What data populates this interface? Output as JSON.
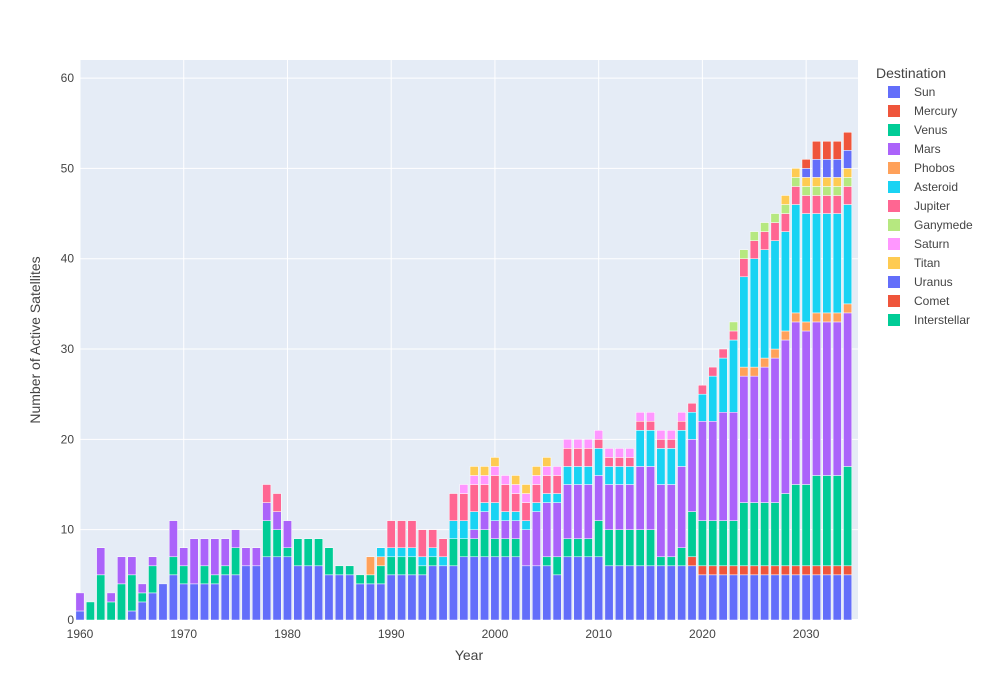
{
  "chart_data": {
    "type": "bar",
    "barmode": "stack",
    "xlabel": "Year",
    "ylabel": "Number of Active Satellites",
    "legend_title": "Destination",
    "legend_position": "right",
    "grid": true,
    "xlim": [
      1960,
      2035
    ],
    "ylim": [
      0,
      62
    ],
    "x_ticks": [
      1960,
      1970,
      1980,
      1990,
      2000,
      2010,
      2020,
      2030
    ],
    "y_ticks": [
      0,
      10,
      20,
      30,
      40,
      50,
      60
    ],
    "x": [
      1960,
      1961,
      1962,
      1963,
      1964,
      1965,
      1966,
      1967,
      1968,
      1969,
      1970,
      1971,
      1972,
      1973,
      1974,
      1975,
      1976,
      1977,
      1978,
      1979,
      1980,
      1981,
      1982,
      1983,
      1984,
      1985,
      1986,
      1987,
      1988,
      1989,
      1990,
      1991,
      1992,
      1993,
      1994,
      1995,
      1996,
      1997,
      1998,
      1999,
      2000,
      2001,
      2002,
      2003,
      2004,
      2005,
      2006,
      2007,
      2008,
      2009,
      2010,
      2011,
      2012,
      2013,
      2014,
      2015,
      2016,
      2017,
      2018,
      2019,
      2020,
      2021,
      2022,
      2023,
      2024,
      2025,
      2026,
      2027,
      2028,
      2029,
      2030,
      2031,
      2032,
      2033,
      2034
    ],
    "series": [
      {
        "name": "Sun",
        "color": "#636EFA",
        "values": [
          1,
          0,
          0,
          0,
          0,
          1,
          2,
          3,
          4,
          5,
          4,
          4,
          4,
          4,
          5,
          5,
          6,
          6,
          7,
          7,
          7,
          6,
          6,
          6,
          5,
          5,
          5,
          4,
          4,
          4,
          5,
          5,
          5,
          5,
          6,
          6,
          6,
          7,
          7,
          7,
          7,
          7,
          7,
          6,
          6,
          6,
          5,
          7,
          7,
          7,
          7,
          6,
          6,
          6,
          6,
          6,
          6,
          6,
          6,
          6,
          5,
          5,
          5,
          5,
          5,
          5,
          5,
          5,
          5,
          5,
          5,
          5,
          5,
          5,
          5
        ]
      },
      {
        "name": "Mercury",
        "color": "#EF553B",
        "values": [
          0,
          0,
          0,
          0,
          0,
          0,
          0,
          0,
          0,
          0,
          0,
          0,
          0,
          0,
          0,
          0,
          0,
          0,
          0,
          0,
          0,
          0,
          0,
          0,
          0,
          0,
          0,
          0,
          0,
          0,
          0,
          0,
          0,
          0,
          0,
          0,
          0,
          0,
          0,
          0,
          0,
          0,
          0,
          0,
          0,
          0,
          0,
          0,
          0,
          0,
          0,
          0,
          0,
          0,
          0,
          0,
          0,
          0,
          0,
          1,
          1,
          1,
          1,
          1,
          1,
          1,
          1,
          1,
          1,
          1,
          1,
          1,
          1,
          1,
          1
        ]
      },
      {
        "name": "Venus",
        "color": "#00CC96",
        "values": [
          0,
          2,
          5,
          2,
          4,
          4,
          1,
          3,
          0,
          2,
          2,
          0,
          2,
          1,
          1,
          3,
          0,
          0,
          4,
          3,
          1,
          3,
          3,
          3,
          3,
          1,
          1,
          1,
          1,
          2,
          2,
          2,
          2,
          1,
          1,
          0,
          3,
          2,
          2,
          3,
          2,
          2,
          2,
          0,
          0,
          1,
          2,
          2,
          2,
          2,
          4,
          4,
          4,
          4,
          4,
          4,
          1,
          1,
          2,
          5,
          5,
          5,
          5,
          5,
          7,
          7,
          7,
          7,
          8,
          9,
          9,
          10,
          10,
          10,
          11
        ]
      },
      {
        "name": "Mars",
        "color": "#AB63FA",
        "values": [
          2,
          0,
          3,
          1,
          3,
          2,
          1,
          1,
          0,
          4,
          2,
          5,
          3,
          4,
          3,
          2,
          2,
          2,
          2,
          2,
          3,
          0,
          0,
          0,
          0,
          0,
          0,
          0,
          0,
          0,
          0,
          0,
          0,
          0,
          0,
          0,
          0,
          0,
          1,
          2,
          2,
          2,
          2,
          4,
          6,
          6,
          6,
          6,
          6,
          6,
          5,
          5,
          5,
          5,
          7,
          7,
          8,
          8,
          9,
          8,
          11,
          11,
          12,
          12,
          14,
          14,
          15,
          16,
          17,
          18,
          17,
          17,
          17,
          17,
          17
        ]
      },
      {
        "name": "Phobos",
        "color": "#FFA15A",
        "values": [
          0,
          0,
          0,
          0,
          0,
          0,
          0,
          0,
          0,
          0,
          0,
          0,
          0,
          0,
          0,
          0,
          0,
          0,
          0,
          0,
          0,
          0,
          0,
          0,
          0,
          0,
          0,
          0,
          2,
          1,
          0,
          0,
          0,
          0,
          0,
          0,
          0,
          0,
          0,
          0,
          0,
          0,
          0,
          0,
          0,
          0,
          0,
          0,
          0,
          0,
          0,
          0,
          0,
          0,
          0,
          0,
          0,
          0,
          0,
          0,
          0,
          0,
          0,
          0,
          1,
          1,
          1,
          1,
          1,
          1,
          1,
          1,
          1,
          1,
          1
        ]
      },
      {
        "name": "Asteroid",
        "color": "#19D3F3",
        "values": [
          0,
          0,
          0,
          0,
          0,
          0,
          0,
          0,
          0,
          0,
          0,
          0,
          0,
          0,
          0,
          0,
          0,
          0,
          0,
          0,
          0,
          0,
          0,
          0,
          0,
          0,
          0,
          0,
          0,
          1,
          1,
          1,
          1,
          1,
          1,
          1,
          2,
          2,
          2,
          1,
          2,
          1,
          1,
          1,
          1,
          1,
          1,
          2,
          2,
          2,
          3,
          2,
          2,
          2,
          4,
          4,
          4,
          4,
          4,
          3,
          3,
          5,
          6,
          8,
          10,
          12,
          12,
          12,
          11,
          12,
          12,
          11,
          11,
          11,
          11
        ]
      },
      {
        "name": "Jupiter",
        "color": "#FF6692",
        "values": [
          0,
          0,
          0,
          0,
          0,
          0,
          0,
          0,
          0,
          0,
          0,
          0,
          0,
          0,
          0,
          0,
          0,
          0,
          2,
          2,
          0,
          0,
          0,
          0,
          0,
          0,
          0,
          0,
          0,
          0,
          3,
          3,
          3,
          3,
          2,
          2,
          3,
          3,
          3,
          2,
          3,
          3,
          2,
          2,
          2,
          2,
          2,
          2,
          2,
          2,
          1,
          1,
          1,
          1,
          1,
          1,
          1,
          1,
          1,
          1,
          1,
          1,
          1,
          1,
          2,
          2,
          2,
          2,
          2,
          2,
          2,
          2,
          2,
          2,
          2
        ]
      },
      {
        "name": "Ganymede",
        "color": "#B6E880",
        "values": [
          0,
          0,
          0,
          0,
          0,
          0,
          0,
          0,
          0,
          0,
          0,
          0,
          0,
          0,
          0,
          0,
          0,
          0,
          0,
          0,
          0,
          0,
          0,
          0,
          0,
          0,
          0,
          0,
          0,
          0,
          0,
          0,
          0,
          0,
          0,
          0,
          0,
          0,
          0,
          0,
          0,
          0,
          0,
          0,
          0,
          0,
          0,
          0,
          0,
          0,
          0,
          0,
          0,
          0,
          0,
          0,
          0,
          0,
          0,
          0,
          0,
          0,
          0,
          1,
          1,
          1,
          1,
          1,
          1,
          1,
          1,
          1,
          1,
          1,
          1
        ]
      },
      {
        "name": "Saturn",
        "color": "#FF97FF",
        "values": [
          0,
          0,
          0,
          0,
          0,
          0,
          0,
          0,
          0,
          0,
          0,
          0,
          0,
          0,
          0,
          0,
          0,
          0,
          0,
          0,
          0,
          0,
          0,
          0,
          0,
          0,
          0,
          0,
          0,
          0,
          0,
          0,
          0,
          0,
          0,
          0,
          0,
          1,
          1,
          1,
          1,
          1,
          1,
          1,
          1,
          1,
          1,
          1,
          1,
          1,
          1,
          1,
          1,
          1,
          1,
          1,
          1,
          1,
          1,
          0,
          0,
          0,
          0,
          0,
          0,
          0,
          0,
          0,
          0,
          0,
          0,
          0,
          0,
          0,
          0
        ]
      },
      {
        "name": "Titan",
        "color": "#FECB52",
        "values": [
          0,
          0,
          0,
          0,
          0,
          0,
          0,
          0,
          0,
          0,
          0,
          0,
          0,
          0,
          0,
          0,
          0,
          0,
          0,
          0,
          0,
          0,
          0,
          0,
          0,
          0,
          0,
          0,
          0,
          0,
          0,
          0,
          0,
          0,
          0,
          0,
          0,
          0,
          1,
          1,
          1,
          0,
          1,
          1,
          1,
          1,
          0,
          0,
          0,
          0,
          0,
          0,
          0,
          0,
          0,
          0,
          0,
          0,
          0,
          0,
          0,
          0,
          0,
          0,
          0,
          0,
          0,
          0,
          1,
          1,
          1,
          1,
          1,
          1,
          1
        ]
      },
      {
        "name": "Uranus",
        "color": "#636EFA",
        "values": [
          0,
          0,
          0,
          0,
          0,
          0,
          0,
          0,
          0,
          0,
          0,
          0,
          0,
          0,
          0,
          0,
          0,
          0,
          0,
          0,
          0,
          0,
          0,
          0,
          0,
          0,
          0,
          0,
          0,
          0,
          0,
          0,
          0,
          0,
          0,
          0,
          0,
          0,
          0,
          0,
          0,
          0,
          0,
          0,
          0,
          0,
          0,
          0,
          0,
          0,
          0,
          0,
          0,
          0,
          0,
          0,
          0,
          0,
          0,
          0,
          0,
          0,
          0,
          0,
          0,
          0,
          0,
          0,
          0,
          0,
          1,
          2,
          2,
          2,
          2
        ]
      },
      {
        "name": "Comet",
        "color": "#EF553B",
        "values": [
          0,
          0,
          0,
          0,
          0,
          0,
          0,
          0,
          0,
          0,
          0,
          0,
          0,
          0,
          0,
          0,
          0,
          0,
          0,
          0,
          0,
          0,
          0,
          0,
          0,
          0,
          0,
          0,
          0,
          0,
          0,
          0,
          0,
          0,
          0,
          0,
          0,
          0,
          0,
          0,
          0,
          0,
          0,
          0,
          0,
          0,
          0,
          0,
          0,
          0,
          0,
          0,
          0,
          0,
          0,
          0,
          0,
          0,
          0,
          0,
          0,
          0,
          0,
          0,
          0,
          0,
          0,
          0,
          0,
          0,
          1,
          2,
          2,
          2,
          2
        ]
      },
      {
        "name": "Interstellar",
        "color": "#00CC96",
        "values": [
          0,
          0,
          0,
          0,
          0,
          0,
          0,
          0,
          0,
          0,
          0,
          0,
          0,
          0,
          0,
          0,
          0,
          0,
          0,
          0,
          0,
          0,
          0,
          0,
          0,
          0,
          0,
          0,
          0,
          0,
          0,
          0,
          0,
          0,
          0,
          0,
          0,
          0,
          0,
          0,
          0,
          0,
          0,
          0,
          0,
          0,
          0,
          0,
          0,
          0,
          0,
          0,
          0,
          0,
          0,
          0,
          0,
          0,
          0,
          0,
          0,
          0,
          0,
          0,
          0,
          0,
          0,
          0,
          0,
          0,
          0,
          0,
          0,
          0,
          0
        ]
      }
    ]
  }
}
